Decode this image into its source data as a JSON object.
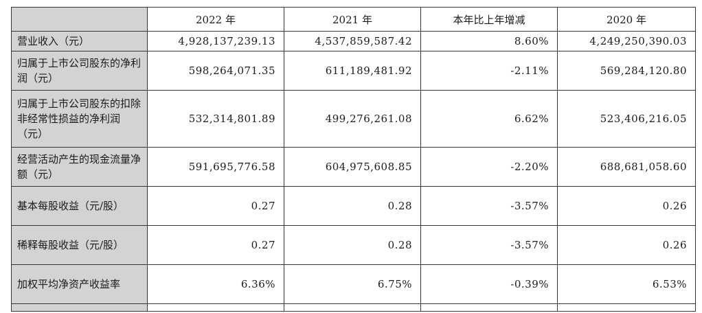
{
  "headers": [
    "",
    "2022 年",
    "2021 年",
    "本年比上年增减",
    "2020 年"
  ],
  "rows": [
    {
      "label": "营业收入（元）",
      "values": [
        "4,928,137,239.13",
        "4,537,859,587.42",
        "8.60%",
        "4,249,250,390.03"
      ]
    },
    {
      "label": "归属于上市公司股东的净利润（元）",
      "values": [
        "598,264,071.35",
        "611,189,481.92",
        "-2.11%",
        "569,284,120.80"
      ]
    },
    {
      "label": "归属于上市公司股东的扣除非经常性损益的净利润（元）",
      "values": [
        "532,314,801.89",
        "499,276,261.08",
        "6.62%",
        "523,406,216.05"
      ]
    },
    {
      "label": "经营活动产生的现金流量净额（元）",
      "values": [
        "591,695,776.58",
        "604,975,608.85",
        "-2.20%",
        "688,681,058.60"
      ]
    },
    {
      "label": "基本每股收益（元/股）",
      "values": [
        "0.27",
        "0.28",
        "-3.57%",
        "0.26"
      ]
    },
    {
      "label": "稀释每股收益（元/股）",
      "values": [
        "0.27",
        "0.28",
        "-3.57%",
        "0.26"
      ]
    },
    {
      "label": "加权平均净资产收益率",
      "values": [
        "6.36%",
        "6.75%",
        "-0.39%",
        "6.53%"
      ]
    }
  ]
}
